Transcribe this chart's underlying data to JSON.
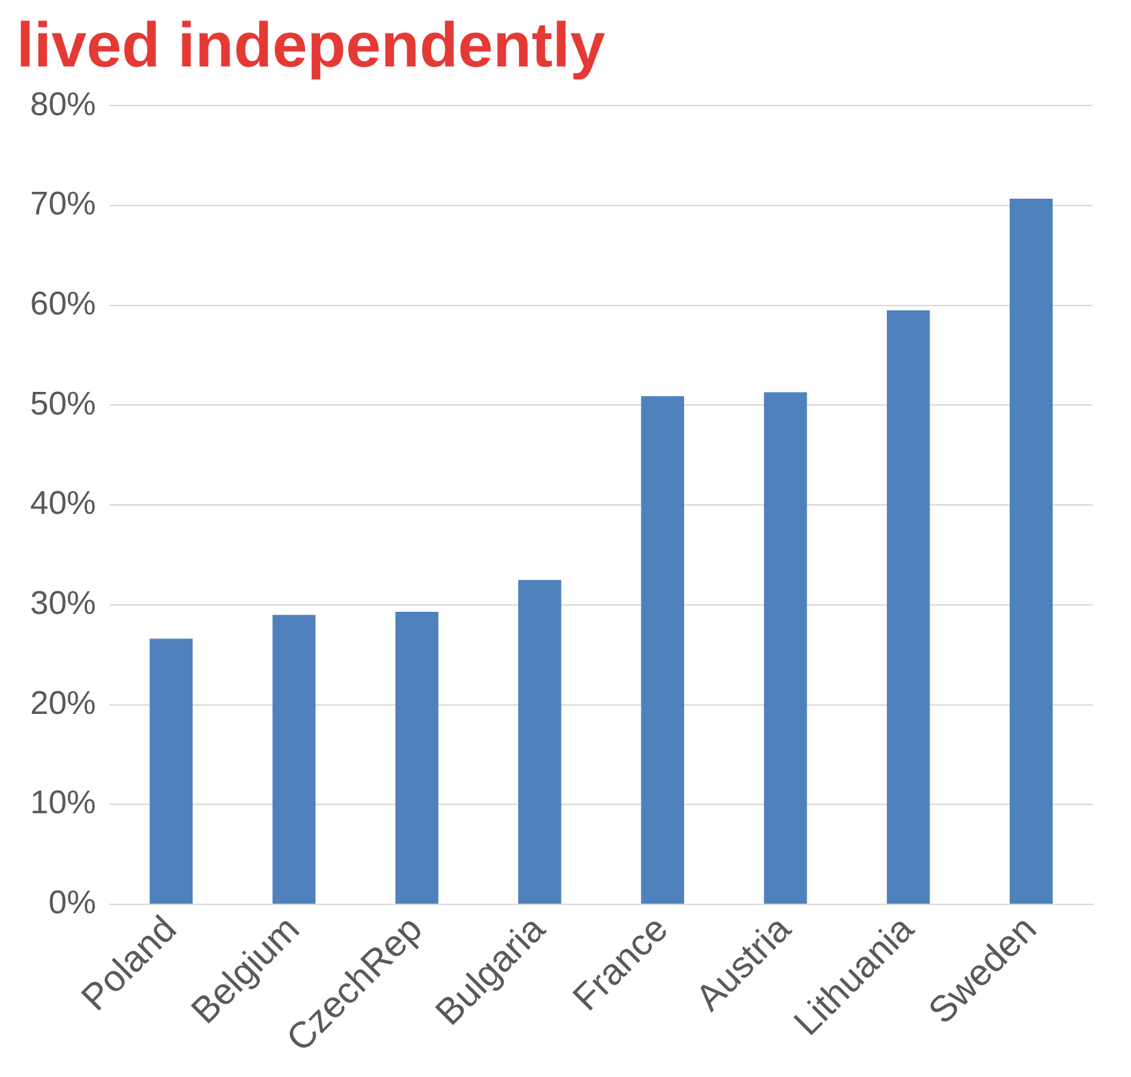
{
  "chart_data": {
    "type": "bar",
    "title": "lived independently",
    "categories": [
      "Poland",
      "Belgium",
      "CzechRep",
      "Bulgaria",
      "France",
      "Austria",
      "Lithuania",
      "Sweden"
    ],
    "values": [
      26.6,
      29.0,
      29.3,
      32.5,
      50.9,
      51.3,
      59.5,
      70.7
    ],
    "color": "#4f81bd",
    "ylim": [
      0,
      80
    ],
    "yticks": [
      {
        "value": 0,
        "label": "0%"
      },
      {
        "value": 10,
        "label": "10%"
      },
      {
        "value": 20,
        "label": "20%"
      },
      {
        "value": 30,
        "label": "30%"
      },
      {
        "value": 40,
        "label": "40%"
      },
      {
        "value": 50,
        "label": "50%"
      },
      {
        "value": 60,
        "label": "60%"
      },
      {
        "value": 70,
        "label": "70%"
      },
      {
        "value": 80,
        "label": "80%"
      }
    ],
    "grid": "y",
    "legend": false
  }
}
